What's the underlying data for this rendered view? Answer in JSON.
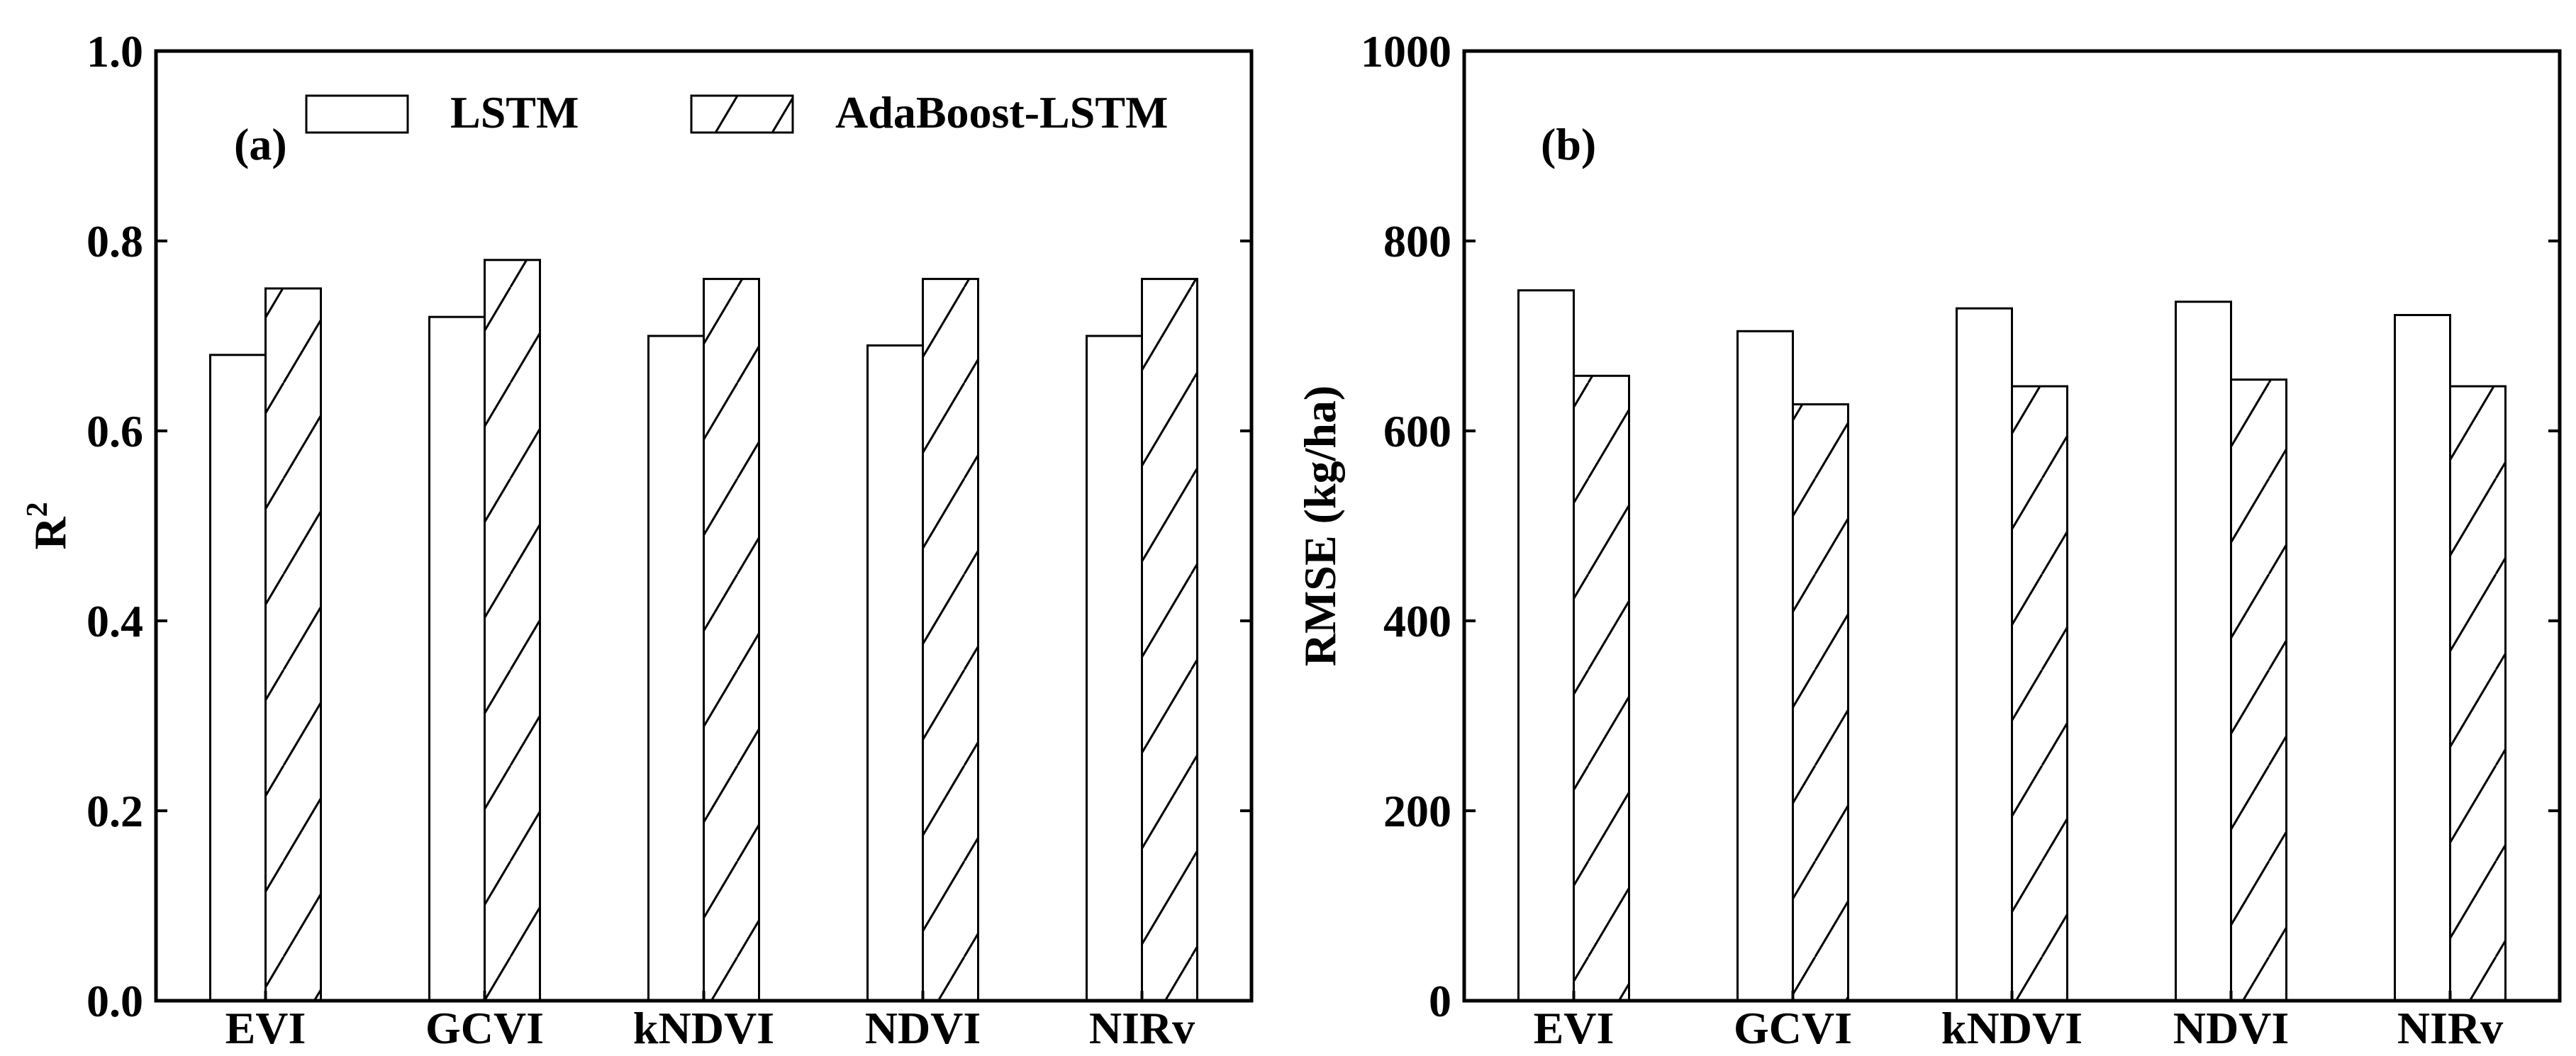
{
  "chart_data": [
    {
      "type": "bar",
      "panel_label": "(a)",
      "categories": [
        "EVI",
        "GCVI",
        "kNDVI",
        "NDVI",
        "NIRv"
      ],
      "series": [
        {
          "name": "LSTM",
          "pattern": "open",
          "values": [
            0.68,
            0.72,
            0.7,
            0.69,
            0.7
          ]
        },
        {
          "name": "AdaBoost-LSTM",
          "pattern": "hatched",
          "values": [
            0.75,
            0.78,
            0.76,
            0.76,
            0.76
          ]
        }
      ],
      "ylabel_base": "R",
      "ylabel_sup": "2",
      "xlabel": "",
      "ylim": [
        0.0,
        1.0
      ],
      "yticks": [
        0.0,
        0.2,
        0.4,
        0.6,
        0.8,
        1.0
      ],
      "ytick_labels": [
        "0.0",
        "0.2",
        "0.4",
        "0.6",
        "0.8",
        "1.0"
      ],
      "legend_position": "top"
    },
    {
      "type": "bar",
      "panel_label": "(b)",
      "categories": [
        "EVI",
        "GCVI",
        "kNDVI",
        "NDVI",
        "NIRv"
      ],
      "series": [
        {
          "name": "LSTM",
          "pattern": "open",
          "values": [
            748,
            705,
            729,
            736,
            722
          ]
        },
        {
          "name": "AdaBoost-LSTM",
          "pattern": "hatched",
          "values": [
            658,
            628,
            647,
            654,
            647
          ]
        }
      ],
      "ylabel": "RMSE (kg/ha)",
      "xlabel": "",
      "ylim": [
        0,
        1000
      ],
      "yticks": [
        0,
        200,
        400,
        600,
        800,
        1000
      ],
      "ytick_labels": [
        "0",
        "200",
        "400",
        "600",
        "800",
        "1000"
      ]
    }
  ],
  "colors": {
    "stroke": "#000000",
    "fill": "#ffffff"
  }
}
